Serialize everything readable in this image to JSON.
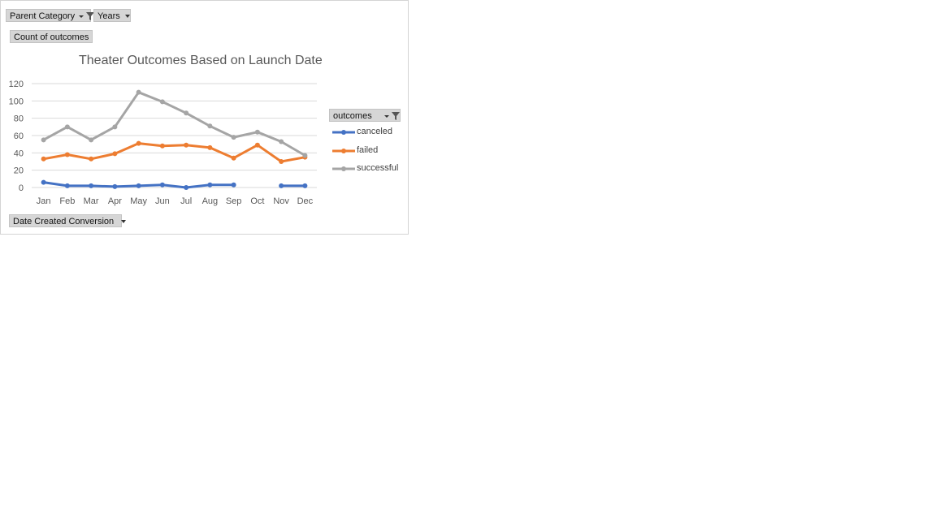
{
  "filters": {
    "parent_category": "Parent Category",
    "years": "Years",
    "values_label": "Count of outcomes",
    "axis_field": "Date Created Conversion",
    "legend_field": "outcomes"
  },
  "colors": {
    "canceled": "#4472C4",
    "failed": "#ED7D31",
    "successful": "#A5A5A5",
    "grid": "#d9d9d9",
    "axis_text": "#595959"
  },
  "icons": [
    "funnel-icon",
    "dropdown-arrow-icon"
  ],
  "chart_data": {
    "type": "line",
    "title": "Theater Outcomes Based on Launch Date",
    "xlabel": "",
    "ylabel": "",
    "categories": [
      "Jan",
      "Feb",
      "Mar",
      "Apr",
      "May",
      "Jun",
      "Jul",
      "Aug",
      "Sep",
      "Oct",
      "Nov",
      "Dec"
    ],
    "ylim": [
      0,
      120
    ],
    "yticks": [
      0,
      20,
      40,
      60,
      80,
      100,
      120
    ],
    "grid": true,
    "legend_position": "right",
    "series": [
      {
        "name": "canceled",
        "values": [
          6,
          2,
          2,
          1,
          2,
          3,
          0,
          3,
          3,
          null,
          2,
          2
        ]
      },
      {
        "name": "failed",
        "values": [
          33,
          38,
          33,
          39,
          51,
          48,
          49,
          46,
          34,
          49,
          30,
          35
        ]
      },
      {
        "name": "successful",
        "values": [
          55,
          70,
          55,
          70,
          110,
          99,
          86,
          71,
          58,
          64,
          53,
          37
        ]
      }
    ]
  }
}
